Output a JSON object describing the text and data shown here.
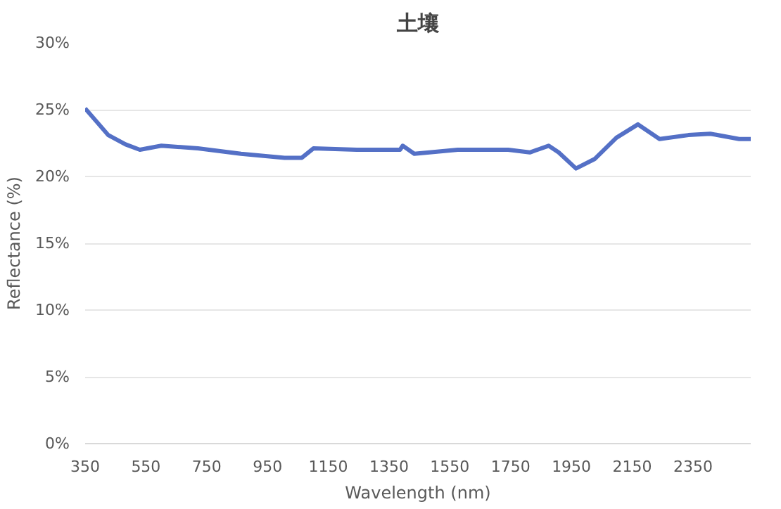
{
  "chart_data": {
    "type": "line",
    "title": "土壤",
    "xlabel": "Wavelength (nm)",
    "ylabel": "Reflectance (%)",
    "xlim": [
      350,
      2540
    ],
    "xticks": [
      350,
      550,
      750,
      950,
      1150,
      1350,
      1550,
      1750,
      1950,
      2150,
      2350
    ],
    "ylim": [
      0,
      30
    ],
    "yticks": [
      {
        "value": 0,
        "label": "0%"
      },
      {
        "value": 5,
        "label": "5%"
      },
      {
        "value": 10,
        "label": "10%"
      },
      {
        "value": 15,
        "label": "15%"
      },
      {
        "value": 20,
        "label": "20%"
      },
      {
        "value": 25,
        "label": "25%"
      },
      {
        "value": 30,
        "label": "30%"
      }
    ],
    "grid": "y",
    "marker": "none",
    "line_style": "solid",
    "series": [
      {
        "color": "#5470c6",
        "x": [
          350,
          388,
          426,
          483,
          530,
          601,
          721,
          863,
          1006,
          1063,
          1101,
          1244,
          1386,
          1395,
          1433,
          1576,
          1742,
          1813,
          1875,
          1908,
          1965,
          2026,
          2098,
          2169,
          2240,
          2335,
          2407,
          2502,
          2540
        ],
        "values": [
          25.1,
          24.1,
          23.1,
          22.4,
          22.0,
          22.3,
          22.1,
          21.7,
          21.4,
          21.4,
          22.1,
          22.0,
          22.0,
          22.3,
          21.7,
          22.0,
          22.0,
          21.8,
          22.3,
          21.8,
          20.6,
          21.3,
          22.9,
          23.9,
          22.8,
          23.1,
          23.2,
          22.8,
          22.8
        ]
      }
    ]
  }
}
